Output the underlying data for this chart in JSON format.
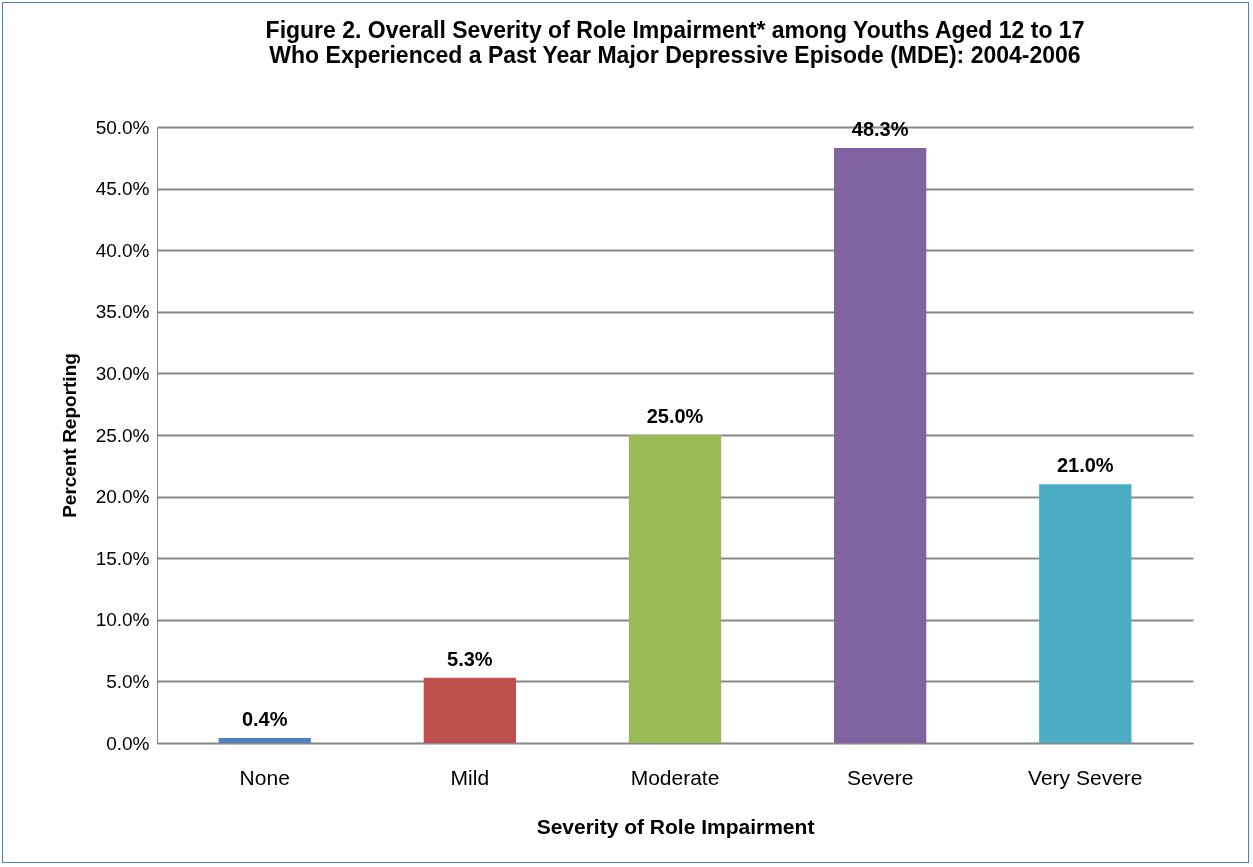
{
  "chart_data": {
    "type": "bar",
    "title": "Figure 2. Overall Severity of Role Impairment* among Youths Aged 12 to 17\nWho Experienced a Past Year Major Depressive Episode (MDE): 2004-2006",
    "xlabel": "Severity of Role Impairment",
    "ylabel": "Percent Reporting",
    "categories": [
      "None",
      "Mild",
      "Moderate",
      "Severe",
      "Very Severe"
    ],
    "values": [
      0.4,
      5.3,
      25.0,
      48.3,
      21.0
    ],
    "colors": [
      "#4f81bd",
      "#c0504d",
      "#9bbb59",
      "#8064a2",
      "#4bacc6"
    ],
    "value_labels": [
      "0.4%",
      "5.3%",
      "25.0%",
      "48.3%",
      "21.0%"
    ],
    "ylim": [
      0,
      50
    ],
    "yticks": [
      {
        "value": 0,
        "label": "0.0%"
      },
      {
        "value": 5,
        "label": "5.0%"
      },
      {
        "value": 10,
        "label": "10.0%"
      },
      {
        "value": 15,
        "label": "15.0%"
      },
      {
        "value": 20,
        "label": "20.0%"
      },
      {
        "value": 25,
        "label": "25.0%"
      },
      {
        "value": 30,
        "label": "30.0%"
      },
      {
        "value": 35,
        "label": "35.0%"
      },
      {
        "value": 40,
        "label": "40.0%"
      },
      {
        "value": 45,
        "label": "45.0%"
      },
      {
        "value": 50,
        "label": "50.0%"
      }
    ],
    "grid": "y"
  }
}
